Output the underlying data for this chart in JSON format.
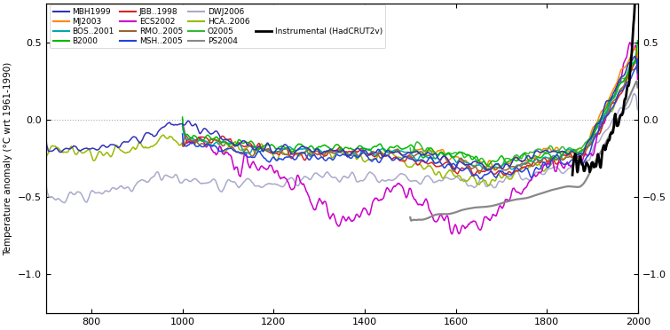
{
  "ylabel": "Temperature anomaly (°C wrt 1961-1990)",
  "xlim": [
    700,
    2000
  ],
  "ylim": [
    -1.25,
    0.75
  ],
  "xticks": [
    800,
    1000,
    1200,
    1400,
    1600,
    1800,
    2000
  ],
  "yticks": [
    -1.0,
    -0.5,
    0.0,
    0.5
  ],
  "color_map": {
    "MBH1999": "#3333bb",
    "JBB..1998": "#dd2222",
    "DWJ2006": "#aaaacc",
    "MJ2003": "#ff8800",
    "ECS2002": "#cc00cc",
    "HCA..2006": "#99bb00",
    "BOS..2001": "#00aaaa",
    "RMO..2005": "#996633",
    "O2005": "#33bb33",
    "B2000": "#00bb00",
    "MSH..2005": "#2244dd",
    "PS2004": "#888888",
    "Instrumental (HadCRUT2v)": "#000000"
  },
  "lw_map": {
    "MBH1999": 1.1,
    "JBB..1998": 1.1,
    "DWJ2006": 1.1,
    "MJ2003": 1.1,
    "ECS2002": 1.1,
    "HCA..2006": 1.1,
    "BOS..2001": 1.1,
    "RMO..2005": 1.1,
    "O2005": 1.1,
    "B2000": 1.1,
    "MSH..2005": 1.1,
    "PS2004": 1.6,
    "Instrumental (HadCRUT2v)": 2.0
  },
  "background_color": "#ffffff",
  "dotted_line_color": "#aaaaaa",
  "legend_rows": [
    [
      "MBH1999",
      "MJ2003",
      "BOS..2001",
      "B2000"
    ],
    [
      "JBB..1998",
      "ECS2002",
      "RMO..2005",
      "MSH..2005"
    ],
    [
      "DWJ2006",
      "HCA..2006",
      "O2005",
      "PS2004"
    ]
  ],
  "legend_instrumental": "Instrumental (HadCRUT2v)"
}
